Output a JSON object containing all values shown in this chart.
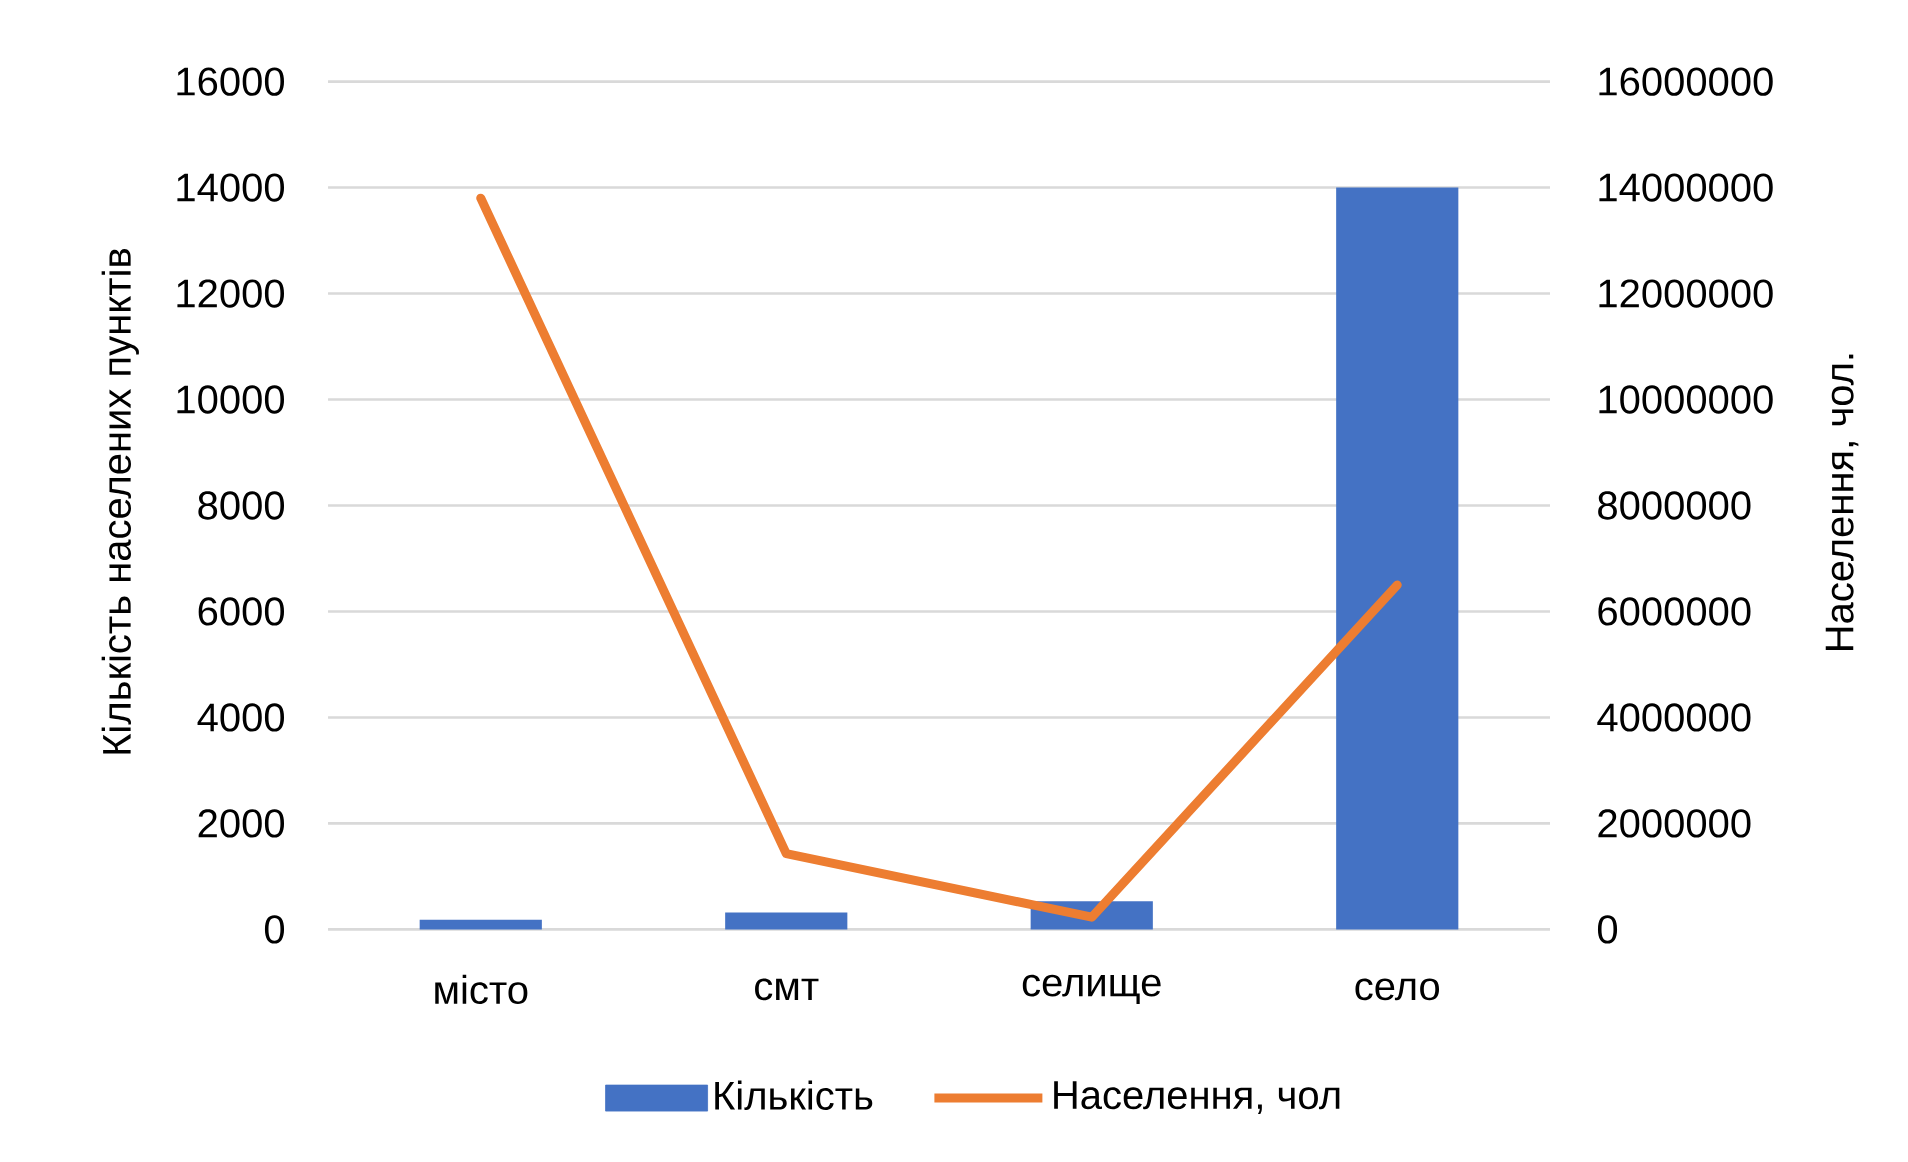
{
  "chart_data": {
    "type": "bar",
    "categories": [
      "місто",
      "смт",
      "селище",
      "село"
    ],
    "ylabel": "Кількість населених пунктів",
    "y2label": "Населення, чол.",
    "series": [
      {
        "name": "Кількість",
        "color": "#4472c4",
        "values": [
          180,
          320,
          530,
          14000
        ]
      },
      {
        "name": "Населення, чол",
        "type": "line",
        "axis": "y2",
        "color": "#ed7d31",
        "values": [
          13800000,
          1430000,
          230000,
          6500000
        ]
      }
    ],
    "ylim": [
      0,
      16000
    ],
    "yticks": [
      0,
      2000,
      4000,
      6000,
      8000,
      10000,
      12000,
      14000,
      16000
    ],
    "y2lim": [
      0,
      16000000
    ],
    "y2ticks": [
      0,
      2000000,
      4000000,
      6000000,
      8000000,
      10000000,
      12000000,
      14000000,
      16000000
    ],
    "grid": "y",
    "legend": "bottom"
  }
}
